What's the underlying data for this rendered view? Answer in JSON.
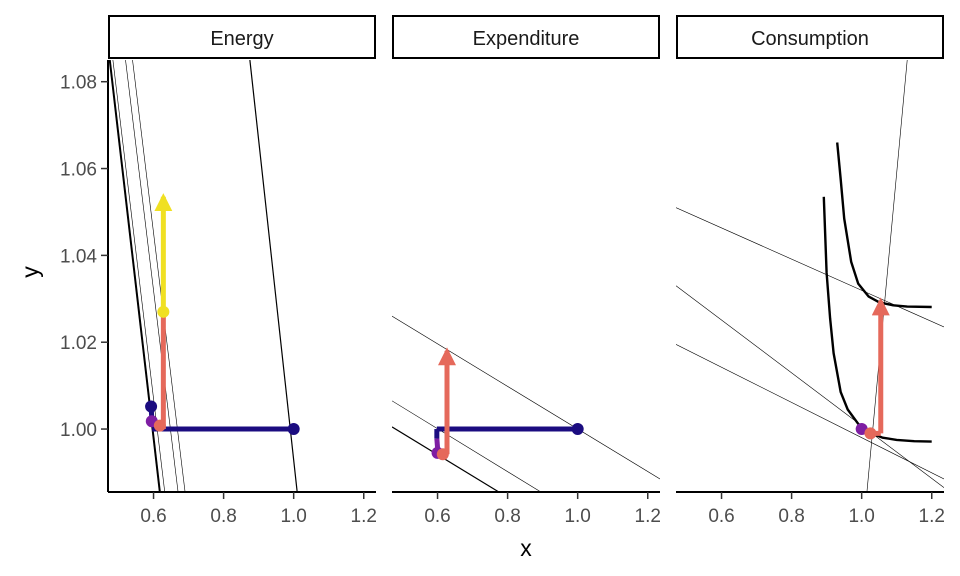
{
  "chart_data": {
    "type": "line",
    "xlabel": "x",
    "ylabel": "y",
    "xlim": [
      0.47,
      1.235
    ],
    "ylim": [
      0.9855,
      1.085
    ],
    "x_ticks": [
      0.6,
      0.8,
      1.0,
      1.2
    ],
    "x_tick_labels": [
      "0.6",
      "0.8",
      "1.0",
      "1.2"
    ],
    "y_ticks": [
      1.0,
      1.02,
      1.04,
      1.06,
      1.08
    ],
    "y_tick_labels": [
      "1.00",
      "1.02",
      "1.04",
      "1.06",
      "1.08"
    ],
    "grid": false,
    "colors": {
      "navy": "#1b0c80",
      "purple": "#7e1ea3",
      "salmon": "#e5695b",
      "yellow": "#f0e022",
      "black": "#000000"
    },
    "panels": [
      {
        "strip": "Energy",
        "lines": [
          {
            "x": [
              0.475,
              0.618
            ],
            "y": [
              1.085,
              0.9855
            ],
            "weight": "thick"
          },
          {
            "x": [
              0.484,
              0.632
            ],
            "y": [
              1.085,
              0.9855
            ],
            "weight": "thin"
          },
          {
            "x": [
              0.52,
              0.67
            ],
            "y": [
              1.085,
              0.9855
            ],
            "weight": "thin"
          },
          {
            "x": [
              0.54,
              0.69
            ],
            "y": [
              1.085,
              0.9855
            ],
            "weight": "thin"
          },
          {
            "x": [
              0.875,
              1.01
            ],
            "y": [
              1.085,
              0.9855
            ],
            "weight": "medium"
          }
        ],
        "segments": [
          {
            "x": [
              0.593,
              0.596
            ],
            "y": [
              1.0052,
              1.0012
            ],
            "color": "navy",
            "point_at": "start"
          },
          {
            "x": [
              0.596,
              1.0
            ],
            "y": [
              1.0,
              1.0
            ],
            "color": "navy",
            "point_at": "end"
          },
          {
            "x": [
              0.595,
              0.61
            ],
            "y": [
              1.0018,
              1.0012
            ],
            "color": "purple",
            "point_at": "start"
          },
          {
            "x": [
              0.618,
              0.628
            ],
            "y": [
              1.0008,
              1.0008
            ],
            "color": "salmon",
            "point_at": "start"
          },
          {
            "x": [
              0.628,
              0.628
            ],
            "y": [
              1.0,
              1.027
            ],
            "color": "salmon",
            "point_at": "none"
          },
          {
            "x": [
              0.628,
              0.628
            ],
            "y": [
              1.027,
              1.0535
            ],
            "color": "yellow",
            "point_at": "start",
            "arrow": true
          }
        ]
      },
      {
        "strip": "Expenditure",
        "lines": [
          {
            "x": [
              0.47,
              1.235
            ],
            "y": [
              1.026,
              0.9885
            ],
            "weight": "thin"
          },
          {
            "x": [
              0.47,
              0.895
            ],
            "y": [
              1.0065,
              0.9855
            ],
            "weight": "thin"
          },
          {
            "x": [
              0.47,
              0.775
            ],
            "y": [
              1.0005,
              0.9855
            ],
            "weight": "medium"
          }
        ],
        "segments": [
          {
            "x": [
              0.598,
              0.598
            ],
            "y": [
              0.9978,
              1.0
            ],
            "color": "navy",
            "point_at": "none"
          },
          {
            "x": [
              0.598,
              1.0
            ],
            "y": [
              1.0,
              1.0
            ],
            "color": "navy",
            "point_at": "end"
          },
          {
            "x": [
              0.598,
              0.6
            ],
            "y": [
              0.9978,
              0.9957
            ],
            "color": "purple",
            "point_at": "none"
          },
          {
            "x": [
              0.6,
              0.6
            ],
            "y": [
              0.9957,
              0.9945
            ],
            "color": "purple",
            "point_at": "end"
          },
          {
            "x": [
              0.6,
              0.615
            ],
            "y": [
              0.9945,
              0.9942
            ],
            "color": "salmon",
            "point_at": "end"
          },
          {
            "x": [
              0.627,
              0.627
            ],
            "y": [
              0.9942,
              1.018
            ],
            "color": "salmon",
            "point_at": "none",
            "arrow": true
          }
        ]
      },
      {
        "strip": "Consumption",
        "lines": [
          {
            "x": [
              0.47,
              1.235
            ],
            "y": [
              1.051,
              1.0235
            ],
            "weight": "thin"
          },
          {
            "x": [
              0.47,
              1.235
            ],
            "y": [
              1.033,
              0.9865
            ],
            "weight": "thin"
          },
          {
            "x": [
              0.47,
              1.235
            ],
            "y": [
              1.0195,
              0.9885
            ],
            "weight": "thin"
          },
          {
            "x": [
              1.015,
              1.13
            ],
            "y": [
              0.9855,
              1.085
            ],
            "weight": "thin"
          }
        ],
        "curves": [
          {
            "x": [
              0.892,
              0.9,
              0.91,
              0.92,
              0.94,
              0.96,
              0.99,
              1.02,
              1.06,
              1.1,
              1.15,
              1.2
            ],
            "y": [
              1.0535,
              1.036,
              1.0255,
              1.0175,
              1.0085,
              1.0045,
              1.0012,
              0.9993,
              0.998,
              0.9975,
              0.9972,
              0.9971
            ]
          },
          {
            "x": [
              0.93,
              0.94,
              0.95,
              0.97,
              0.99,
              1.02,
              1.05,
              1.09,
              1.13,
              1.2
            ],
            "y": [
              1.066,
              1.0575,
              1.0485,
              1.0385,
              1.0335,
              1.0305,
              1.0292,
              1.0285,
              1.0282,
              1.0281
            ]
          }
        ],
        "segments": [
          {
            "x": [
              1.0,
              1.025
            ],
            "y": [
              1.0,
              0.999
            ],
            "color": "purple",
            "point_at": "start"
          },
          {
            "x": [
              1.025,
              1.0545
            ],
            "y": [
              0.999,
              0.999
            ],
            "color": "salmon",
            "point_at": "start"
          },
          {
            "x": [
              1.0545,
              1.0545
            ],
            "y": [
              0.999,
              1.0295
            ],
            "color": "salmon",
            "point_at": "none",
            "arrow": true
          }
        ]
      }
    ]
  }
}
